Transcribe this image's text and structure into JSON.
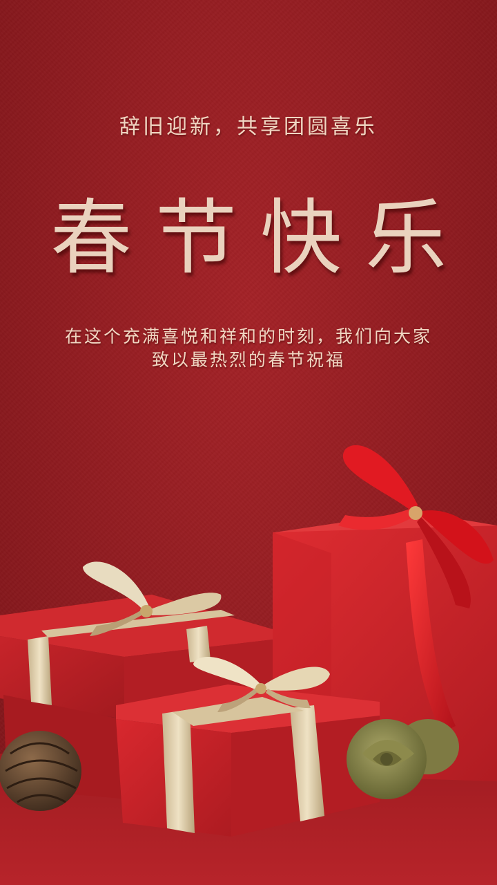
{
  "poster": {
    "tagline": "辞旧迎新，共享团圆喜乐",
    "title": "春节快乐",
    "message_line1": "在这个充满喜悦和祥和的时刻，我们向大家",
    "message_line2": "致以最热烈的春节祝福"
  },
  "colors": {
    "background": "#931c21",
    "text": "#f0d6c2",
    "gift_red": "#c8242a",
    "ribbon_gold": "#d9c7a2",
    "ribbon_red": "#d8161f"
  },
  "illustration": {
    "items": [
      "gift-box-large",
      "gift-box-left",
      "gift-box-front",
      "pine-cone",
      "dried-flower"
    ]
  }
}
